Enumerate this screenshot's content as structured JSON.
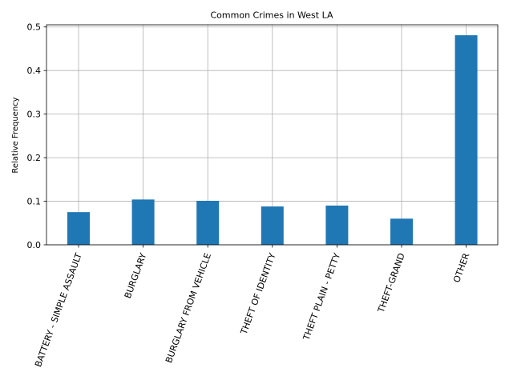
{
  "chart_data": {
    "type": "bar",
    "title": "Common Crimes in West LA",
    "xlabel": "",
    "ylabel": "Relative Frequency",
    "categories": [
      "BATTERY - SIMPLE ASSAULT",
      "BURGLARY",
      "BURGLARY FROM VEHICLE",
      "THEFT OF IDENTITY",
      "THEFT PLAIN - PETTY",
      "THEFT-GRAND",
      "OTHER"
    ],
    "values": [
      0.075,
      0.104,
      0.101,
      0.088,
      0.09,
      0.06,
      0.481
    ],
    "ylim": [
      0,
      0.505
    ],
    "yticks": [
      0.0,
      0.1,
      0.2,
      0.3,
      0.4,
      0.5
    ],
    "ytick_labels": [
      "0.0",
      "0.1",
      "0.2",
      "0.3",
      "0.4",
      "0.5"
    ],
    "grid": true,
    "bar_color": "#1f77b4"
  }
}
